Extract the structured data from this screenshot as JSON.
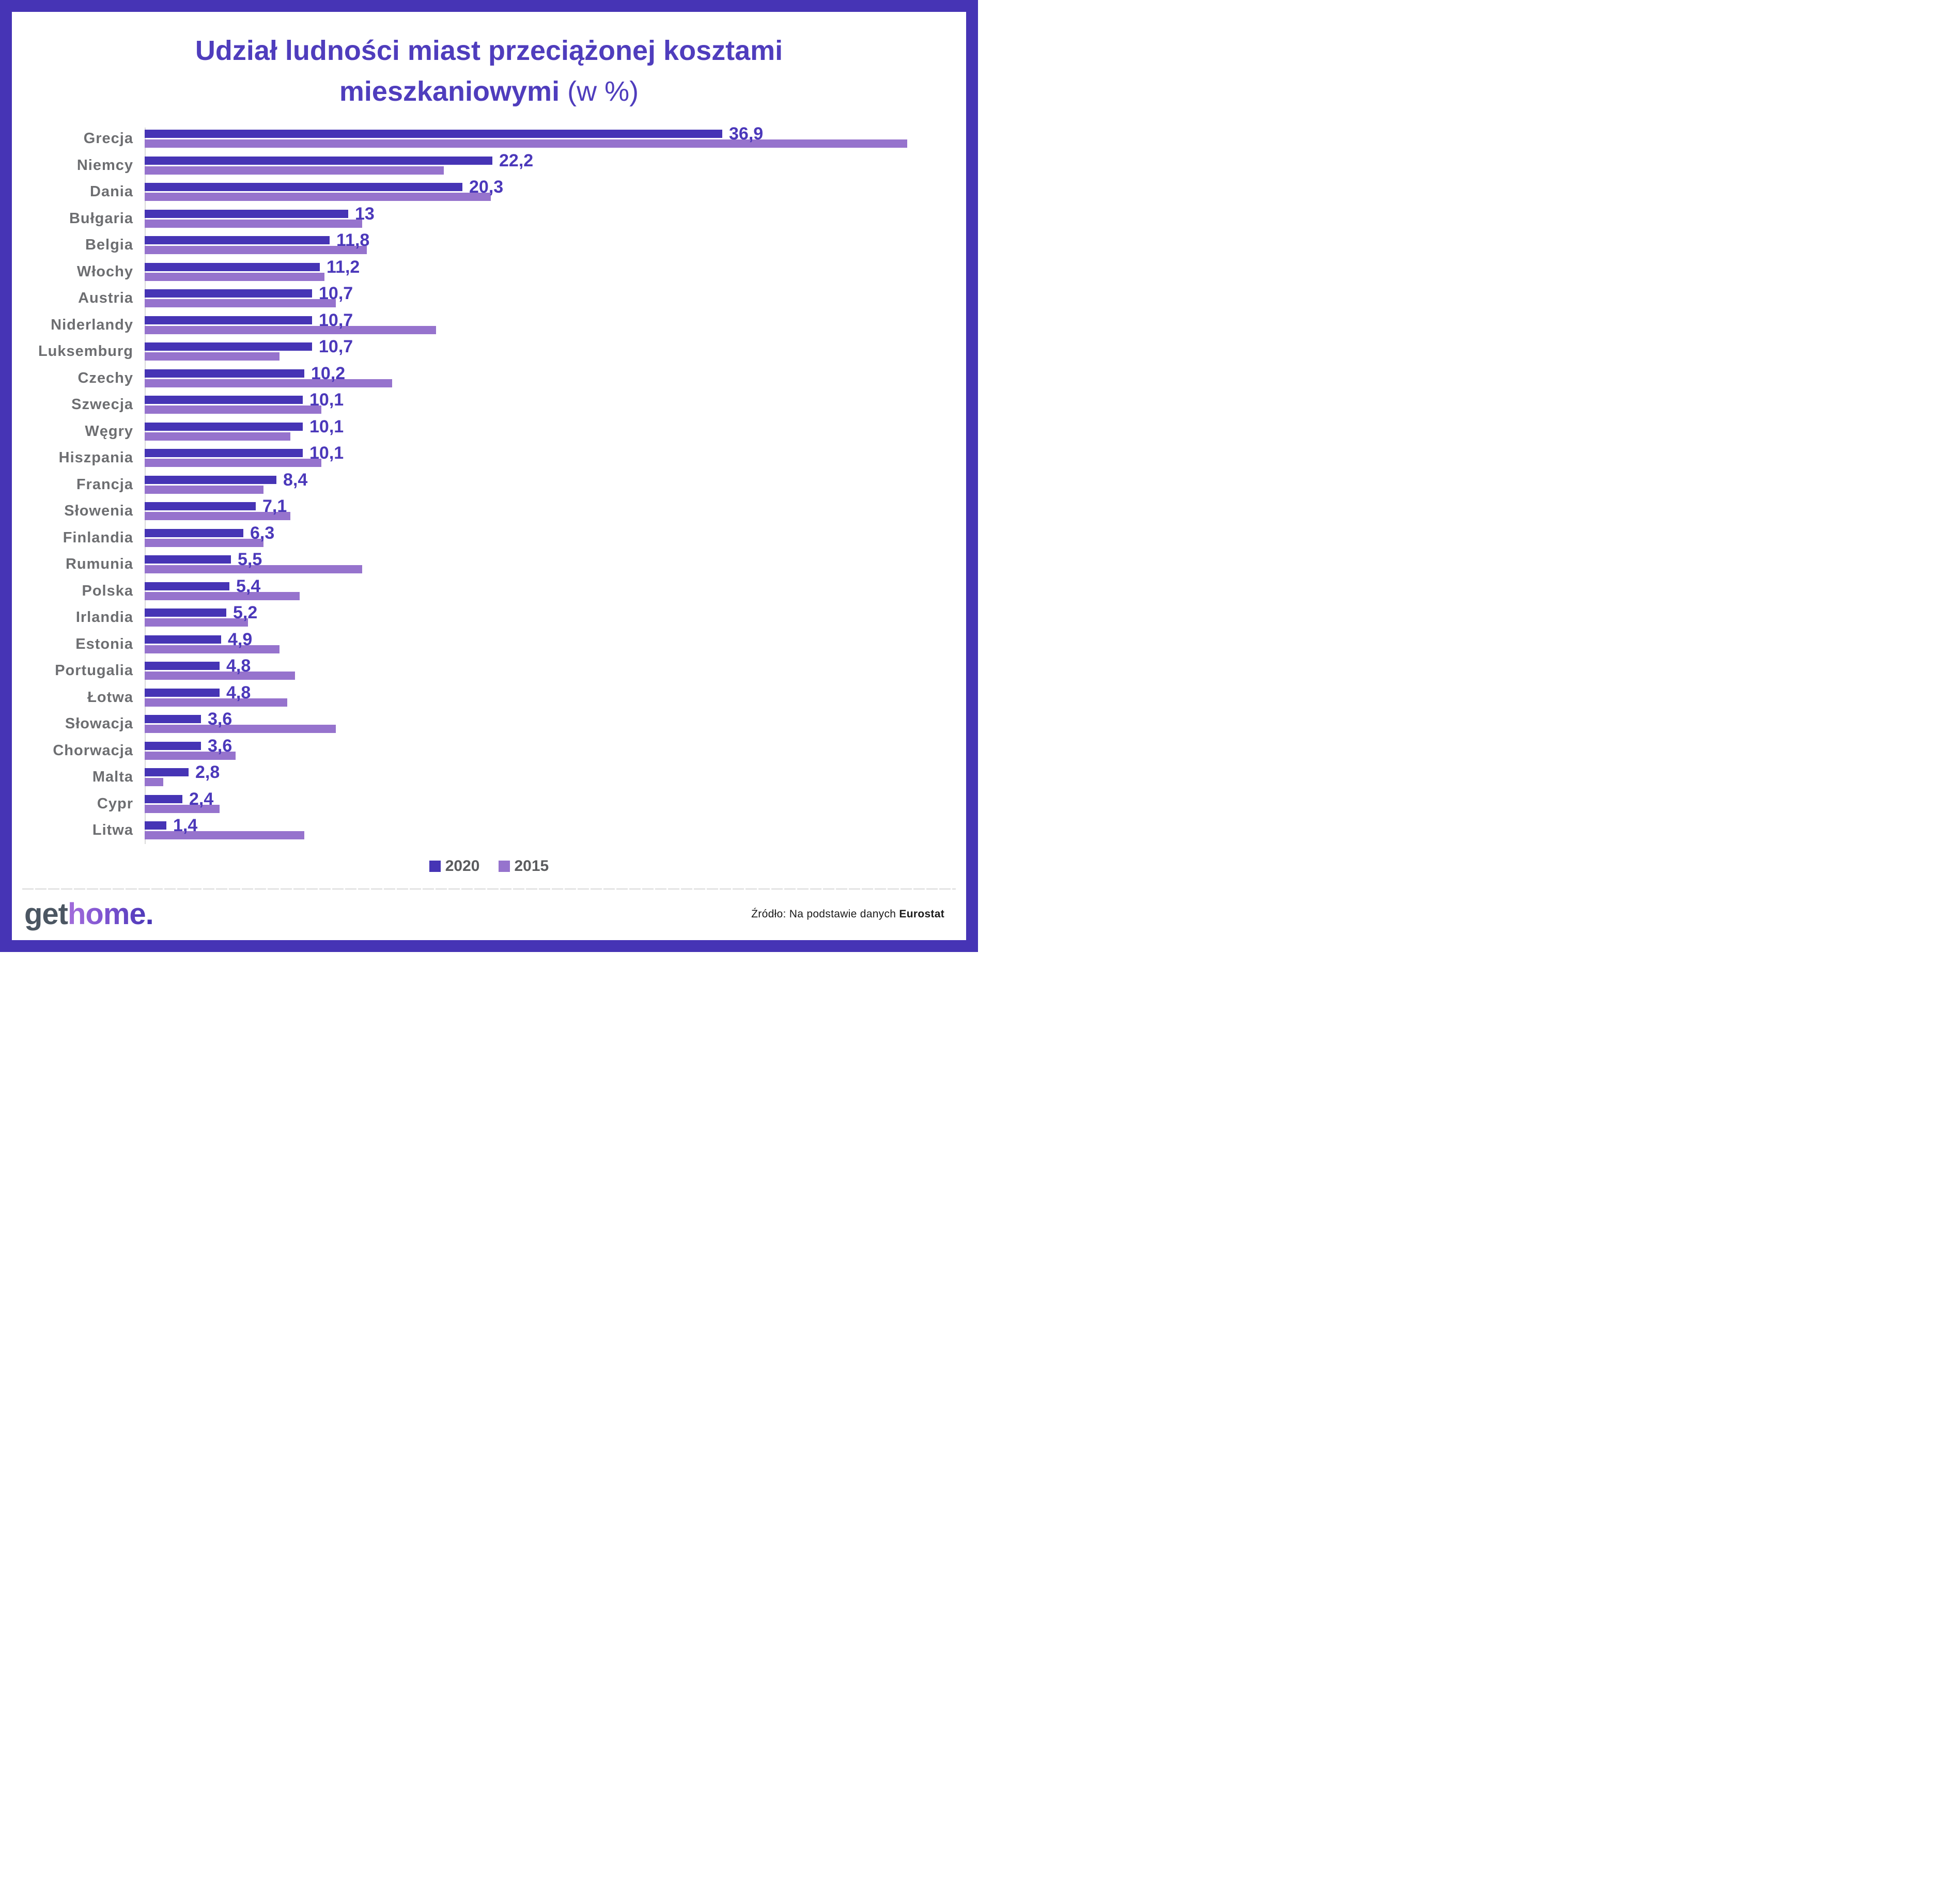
{
  "title": {
    "line1": "Udział ludności miast przeciążonej kosztami",
    "line2_bold": "mieszkaniowymi",
    "line2_light": "(w %)"
  },
  "chart_data": {
    "type": "bar",
    "orientation": "horizontal",
    "title": "Udział ludności miast przeciążonej kosztami mieszkaniowymi (w %)",
    "unit": "%",
    "decimal_separator": ",",
    "value_labels_shown_for": "2020",
    "xlim": [
      0,
      50
    ],
    "grid": false,
    "legend_position": "bottom-center",
    "categories": [
      "Grecja",
      "Niemcy",
      "Dania",
      "Bułgaria",
      "Belgia",
      "Włochy",
      "Austria",
      "Niderlandy",
      "Luksemburg",
      "Czechy",
      "Szwecja",
      "Węgry",
      "Hiszpania",
      "Francja",
      "Słowenia",
      "Finlandia",
      "Rumunia",
      "Polska",
      "Irlandia",
      "Estonia",
      "Portugalia",
      "Łotwa",
      "Słowacja",
      "Chorwacja",
      "Malta",
      "Cypr",
      "Litwa"
    ],
    "series": [
      {
        "name": "2020",
        "color": "#4634b5",
        "values": [
          36.9,
          22.2,
          20.3,
          13,
          11.8,
          11.2,
          10.7,
          10.7,
          10.7,
          10.2,
          10.1,
          10.1,
          10.1,
          8.4,
          7.1,
          6.3,
          5.5,
          5.4,
          5.2,
          4.9,
          4.8,
          4.8,
          3.6,
          3.6,
          2.8,
          2.4,
          1.4
        ],
        "data_labels": [
          "36,9",
          "22,2",
          "20,3",
          "13",
          "11,8",
          "11,2",
          "10,7",
          "10,7",
          "10,7",
          "10,2",
          "10,1",
          "10,1",
          "10,1",
          "8,4",
          "7,1",
          "6,3",
          "5,5",
          "5,4",
          "5,2",
          "4,9",
          "4,8",
          "4,8",
          "3,6",
          "3,6",
          "2,8",
          "2,4",
          "1,4"
        ]
      },
      {
        "name": "2015",
        "color": "#9673cd",
        "values_estimated_from_bar_lengths": true,
        "values": [
          48.7,
          19.1,
          22.1,
          13.9,
          14.2,
          11.5,
          12.2,
          18.6,
          8.6,
          15.8,
          11.3,
          9.3,
          11.3,
          7.6,
          9.3,
          7.6,
          13.9,
          9.9,
          6.6,
          8.6,
          9.6,
          9.1,
          12.2,
          5.8,
          1.2,
          4.8,
          10.2
        ]
      }
    ]
  },
  "legend": {
    "items": [
      {
        "label": "2020",
        "color": "#4634b5"
      },
      {
        "label": "2015",
        "color": "#9673cd"
      }
    ]
  },
  "footer": {
    "logo_get": "get",
    "logo_home": "home.",
    "source_prefix": "Źródło: Na podstawie danych ",
    "source_bold": "Eurostat"
  },
  "colors": {
    "frame": "#4634b5",
    "title": "#4f3dbd",
    "bar_2020": "#4634b5",
    "bar_2015": "#9673cd",
    "value_label": "#4b38ba",
    "country_label": "#6d6e71",
    "legend_text": "#5b5c5e",
    "axis_line": "#d9d9d9",
    "divider": "#d9d9d9",
    "logo_get": "#4b5662",
    "source_text": "#1a1a1a"
  }
}
